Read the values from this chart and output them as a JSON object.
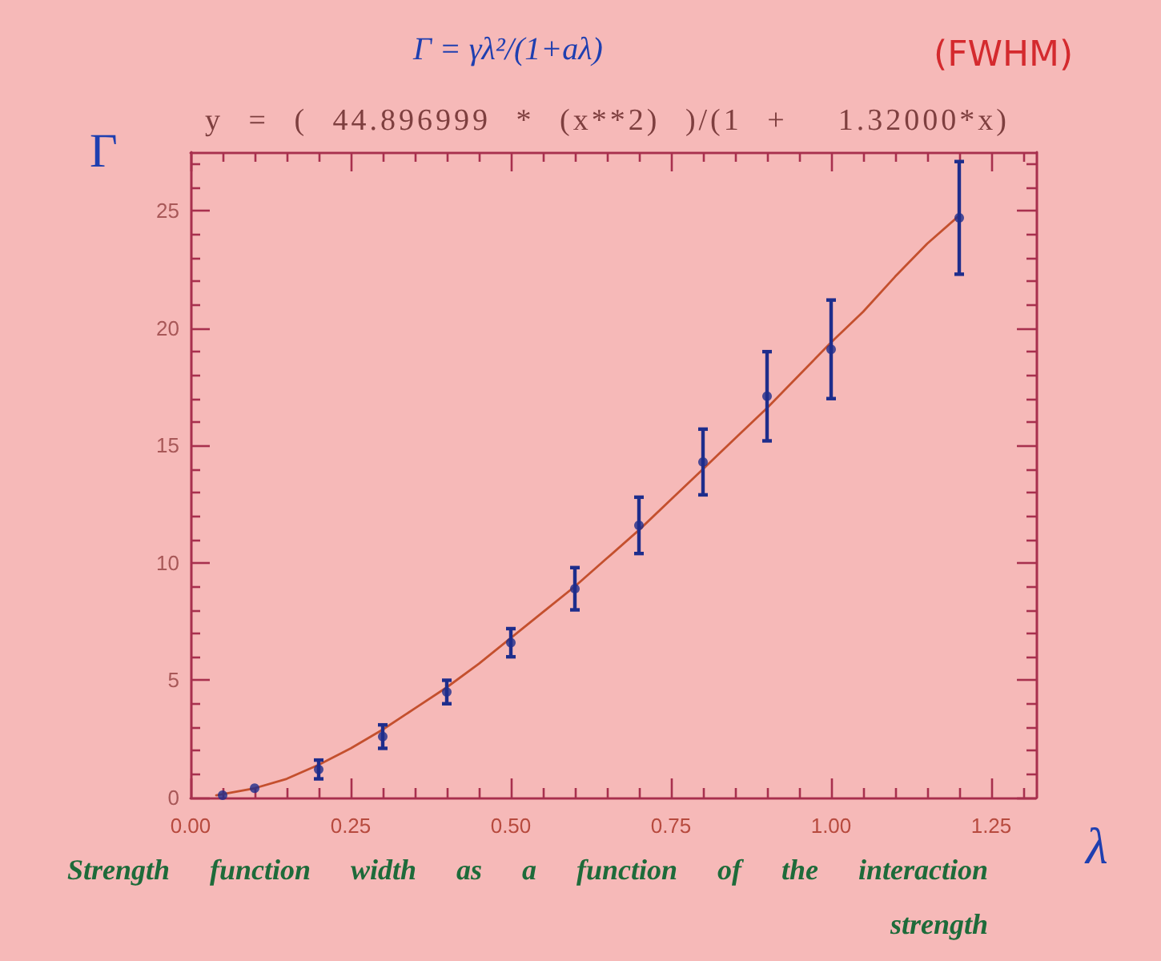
{
  "chart_data": {
    "type": "scatter",
    "title": "y = ( 44.896999 * (x**2) )/(1 +  1.32000*x)",
    "xlabel": "λ",
    "ylabel": "Γ",
    "annotations": [
      "Γ = γλ²/(1+aλ)",
      "(FWHM)",
      "Strength function width as a function of the interaction strength"
    ],
    "xlim": [
      0,
      1.32
    ],
    "ylim": [
      0,
      27.5
    ],
    "xticks": [
      {
        "value": 0,
        "label": "0.00"
      },
      {
        "value": 0.05,
        "label": null
      },
      {
        "value": 0.1,
        "label": null
      },
      {
        "value": 0.15,
        "label": null
      },
      {
        "value": 0.2,
        "label": null
      },
      {
        "value": 0.25,
        "label": "0.25"
      },
      {
        "value": 0.3,
        "label": null
      },
      {
        "value": 0.35,
        "label": null
      },
      {
        "value": 0.4,
        "label": null
      },
      {
        "value": 0.45,
        "label": null
      },
      {
        "value": 0.5,
        "label": "0.50"
      },
      {
        "value": 0.55,
        "label": null
      },
      {
        "value": 0.6,
        "label": null
      },
      {
        "value": 0.65,
        "label": null
      },
      {
        "value": 0.7,
        "label": null
      },
      {
        "value": 0.75,
        "label": "0.75"
      },
      {
        "value": 0.8,
        "label": null
      },
      {
        "value": 0.85,
        "label": null
      },
      {
        "value": 0.9,
        "label": null
      },
      {
        "value": 0.95,
        "label": null
      },
      {
        "value": 1,
        "label": "1.00"
      },
      {
        "value": 1.05,
        "label": null
      },
      {
        "value": 1.1,
        "label": null
      },
      {
        "value": 1.15,
        "label": null
      },
      {
        "value": 1.2,
        "label": null
      },
      {
        "value": 1.25,
        "label": "1.25"
      },
      {
        "value": 1.3,
        "label": null
      }
    ],
    "yticks": [
      0,
      {
        "value": 1,
        "label": null
      },
      {
        "value": 2,
        "label": null
      },
      {
        "value": 3,
        "label": null
      },
      {
        "value": 4,
        "label": null
      },
      5,
      {
        "value": 6,
        "label": null
      },
      {
        "value": 7,
        "label": null
      },
      {
        "value": 8,
        "label": null
      },
      {
        "value": 9,
        "label": null
      },
      10,
      {
        "value": 11,
        "label": null
      },
      {
        "value": 12,
        "label": null
      },
      {
        "value": 13,
        "label": null
      },
      {
        "value": 14,
        "label": null
      },
      15,
      {
        "value": 16,
        "label": null
      },
      {
        "value": 17,
        "label": null
      },
      {
        "value": 18,
        "label": null
      },
      {
        "value": 19,
        "label": null
      },
      20,
      {
        "value": 21,
        "label": null
      },
      {
        "value": 22,
        "label": null
      },
      {
        "value": 23,
        "label": null
      },
      {
        "value": 24,
        "label": null
      },
      25,
      {
        "value": 26,
        "label": null
      },
      {
        "value": 27,
        "label": null
      }
    ],
    "series": [
      {
        "type": "line",
        "color": "#c4502e",
        "marker": "none",
        "x": [
          0.04,
          0.1,
          0.15,
          0.2,
          0.25,
          0.3,
          0.35,
          0.4,
          0.45,
          0.5,
          0.55,
          0.6,
          0.65,
          0.7,
          0.75,
          0.8,
          0.85,
          0.9,
          0.95,
          1.0,
          1.05,
          1.1,
          1.15,
          1.2
        ],
        "values": [
          0.1,
          0.4,
          0.8,
          1.4,
          2.1,
          2.9,
          3.8,
          4.7,
          5.7,
          6.8,
          7.9,
          9.0,
          10.2,
          11.4,
          12.7,
          14.0,
          15.3,
          16.6,
          18.0,
          19.4,
          20.7,
          22.2,
          23.6,
          24.8
        ]
      },
      {
        "color": "#1e2d8c",
        "marker": "circle",
        "x": [
          0.05,
          0.1,
          0.2,
          0.3,
          0.4,
          0.5,
          0.6,
          0.7,
          0.8,
          0.9,
          1.0,
          1.2
        ],
        "values": [
          0.1,
          0.4,
          1.2,
          2.6,
          4.5,
          6.6,
          8.9,
          11.6,
          14.3,
          17.1,
          19.1,
          24.7
        ],
        "errors": [
          null,
          null,
          0.4,
          0.5,
          0.5,
          0.6,
          0.9,
          1.2,
          1.4,
          1.9,
          2.1,
          2.4
        ]
      }
    ]
  }
}
